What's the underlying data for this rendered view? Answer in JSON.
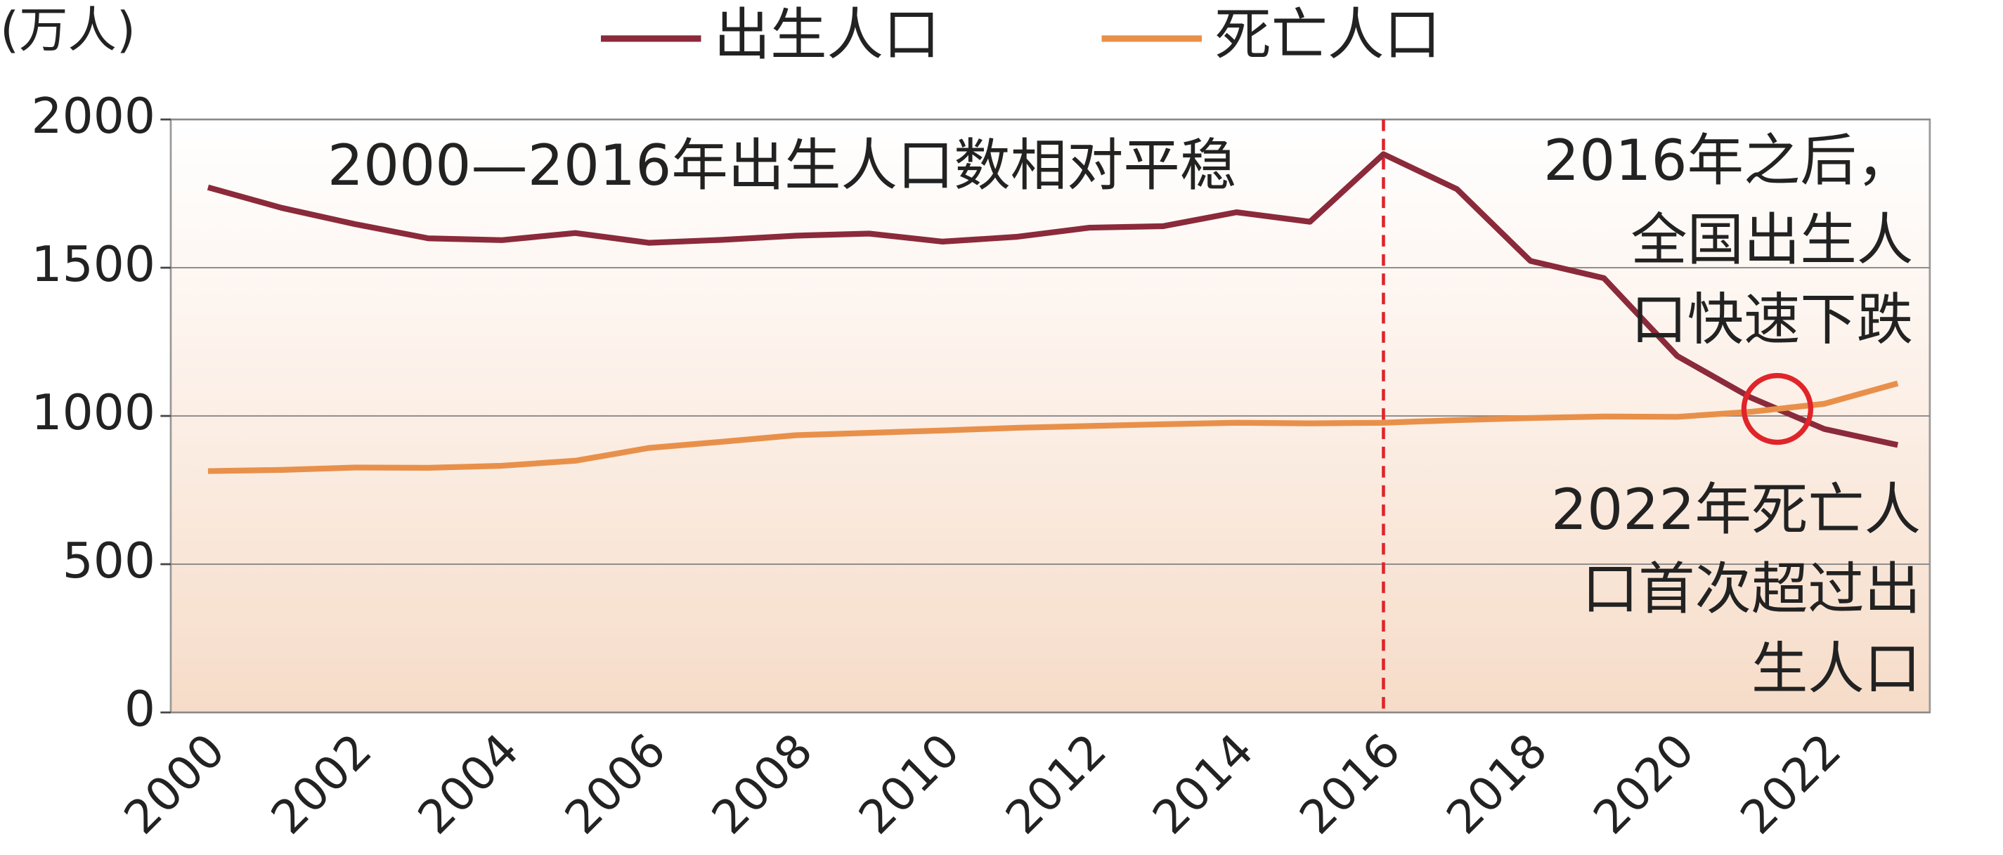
{
  "chart_data": {
    "type": "line",
    "y_unit": "(万人)",
    "categories": [
      "2000",
      null,
      "2002",
      null,
      "2004",
      null,
      "2006",
      null,
      "2008",
      null,
      "2010",
      null,
      "2012",
      null,
      "2014",
      null,
      "2016",
      null,
      "2018",
      null,
      "2020",
      null,
      "2022",
      null
    ],
    "series": [
      {
        "name": "出生人口",
        "color": "#8b2a3a",
        "values": [
          1771,
          1702,
          1647,
          1599,
          1593,
          1617,
          1584,
          1594,
          1608,
          1615,
          1588,
          1604,
          1635,
          1640,
          1687,
          1655,
          1883,
          1765,
          1523,
          1465,
          1202,
          1062,
          956,
          902
        ]
      },
      {
        "name": "死亡人口",
        "color": "#e8904a",
        "values": [
          814,
          818,
          826,
          825,
          832,
          849,
          892,
          913,
          935,
          943,
          951,
          960,
          966,
          972,
          977,
          975,
          977,
          986,
          993,
          998,
          997,
          1014,
          1041,
          1110
        ]
      }
    ],
    "ylim": [
      0,
      2000
    ],
    "yticks": [
      0,
      500,
      1000,
      1500,
      2000
    ],
    "grid": true,
    "annotations": [
      [
        "2000—2016年出生人口数相对平稳"
      ],
      [
        "2016年之后，",
        "全国出生人",
        "口快速下跌"
      ],
      [
        "2022年死亡人",
        "口首次超过出",
        "生人口"
      ]
    ]
  }
}
